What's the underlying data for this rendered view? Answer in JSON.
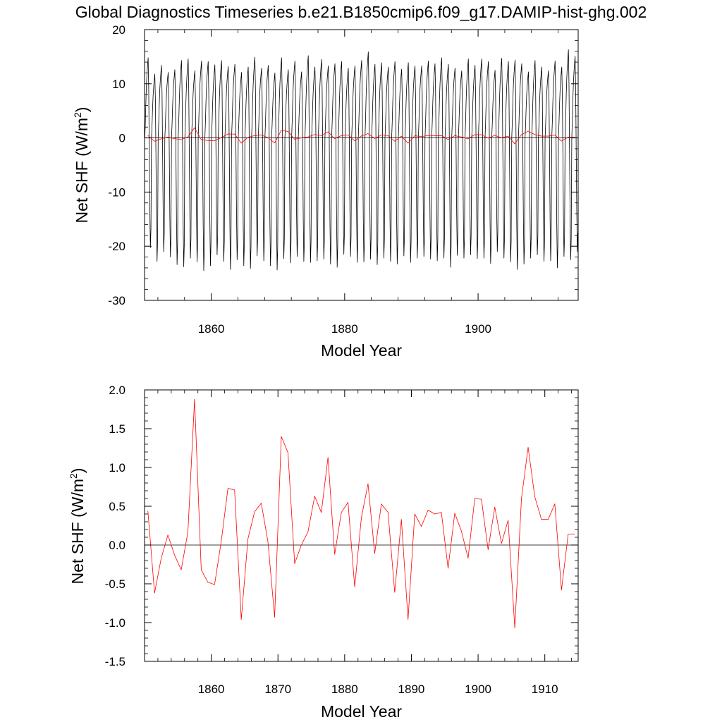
{
  "figure": {
    "title": "Global Diagnostics Timeseries b.e21.B1850cmip6.f09_g17.DAMIP-hist-ghg.002"
  },
  "chart_data": [
    {
      "type": "line",
      "title": "",
      "xlabel": "Model Year",
      "ylabel_prefix": "Net SHF (W/m",
      "ylabel_sup": "2",
      "ylabel_suffix": ")",
      "xlim": [
        1850,
        1915
      ],
      "ylim": [
        -30,
        20
      ],
      "xticks": [
        1860,
        1880,
        1900
      ],
      "yticks": [
        -30,
        -20,
        -10,
        0,
        10,
        20
      ],
      "zero_line": true,
      "series": [
        {
          "color": "#000000",
          "values_monthly": [
            0,
            3,
            7,
            10,
            12,
            13.5,
            14.8,
            9,
            -3,
            -15,
            -22.8,
            -19
          ],
          "note_shape": "seasonal cycle repeated each model year",
          "annual_max": [
            14.8,
            11.8,
            13.4,
            12.1,
            12.6,
            14.3,
            14.6,
            12.4,
            14.2,
            14.1,
            13.5,
            14.3,
            13.2,
            13.6,
            12.1,
            13.1,
            14.9,
            12.9,
            13.4,
            12.0,
            14.8,
            12.6,
            14.2,
            12.2,
            15.2,
            13.1,
            14.5,
            13.3,
            13.7,
            14.1,
            12.9,
            13.3,
            14.3,
            15.9,
            13.6,
            13.9,
            13.1,
            14.1,
            12.7,
            13.9,
            13.3,
            13.3,
            14.2,
            13.7,
            14.8,
            13.6,
            12.9,
            12.4,
            14.6,
            13.4,
            14.6,
            14.1,
            12.5,
            14.7,
            14.1,
            14.4,
            13.7,
            12.2,
            14.3,
            13.1,
            12.4,
            14.2,
            13.1,
            16.3,
            15.1
          ],
          "annual_min": [
            -20.3,
            -22.8,
            -21.0,
            -22.0,
            -23.4,
            -23.8,
            -22.2,
            -22.9,
            -24.5,
            -23.6,
            -21.6,
            -22.8,
            -24.3,
            -22.5,
            -23.6,
            -24.1,
            -21.8,
            -22.7,
            -23.6,
            -24.4,
            -22.3,
            -23.1,
            -21.9,
            -22.8,
            -23.0,
            -22.7,
            -22.4,
            -23.3,
            -23.9,
            -21.5,
            -21.9,
            -23.0,
            -22.9,
            -22.4,
            -23.4,
            -22.2,
            -22.8,
            -23.3,
            -21.8,
            -23.0,
            -22.2,
            -21.9,
            -22.4,
            -22.7,
            -22.2,
            -23.9,
            -21.7,
            -22.2,
            -21.6,
            -22.3,
            -22.2,
            -23.2,
            -21.0,
            -22.2,
            -22.9,
            -24.3,
            -23.3,
            -22.2,
            -21.6,
            -22.8,
            -22.7,
            -24.0,
            -21.9,
            -22.5,
            -21.0
          ]
        },
        {
          "color": "#ff0000",
          "values_ref": "annual",
          "x": [
            1850.5,
            1851.5,
            1852.5,
            1853.5,
            1854.5,
            1855.5,
            1856.5,
            1857.5,
            1858.5,
            1859.5,
            1860.5,
            1861.5,
            1862.5,
            1863.5,
            1864.5,
            1865.5,
            1866.5,
            1867.5,
            1868.5,
            1869.5,
            1870.5,
            1871.5,
            1872.5,
            1873.5,
            1874.5,
            1875.5,
            1876.5,
            1877.5,
            1878.5,
            1879.5,
            1880.5,
            1881.5,
            1882.5,
            1883.5,
            1884.5,
            1885.5,
            1886.5,
            1887.5,
            1888.5,
            1889.5,
            1890.5,
            1891.5,
            1892.5,
            1893.5,
            1894.5,
            1895.5,
            1896.5,
            1897.5,
            1898.5,
            1899.5,
            1900.5,
            1901.5,
            1902.5,
            1903.5,
            1904.5,
            1905.5,
            1906.5,
            1907.5,
            1908.5,
            1909.5,
            1910.5,
            1911.5,
            1912.5,
            1913.5,
            1914.5
          ],
          "values": [
            0.44,
            -0.62,
            -0.17,
            0.13,
            -0.13,
            -0.32,
            0.17,
            1.88,
            -0.32,
            -0.48,
            -0.51,
            0.05,
            0.73,
            0.71,
            -0.96,
            0.08,
            0.43,
            0.54,
            0.04,
            -0.93,
            1.4,
            1.19,
            -0.24,
            0.0,
            0.17,
            0.63,
            0.42,
            1.13,
            -0.12,
            0.42,
            0.55,
            -0.54,
            0.35,
            0.79,
            -0.11,
            0.53,
            0.42,
            -0.61,
            0.33,
            -0.96,
            0.4,
            0.24,
            0.45,
            0.4,
            0.42,
            -0.3,
            0.41,
            0.18,
            -0.17,
            0.6,
            0.59,
            -0.06,
            0.49,
            0.02,
            0.32,
            -1.07,
            0.6,
            1.26,
            0.62,
            0.33,
            0.33,
            0.53,
            -0.58,
            0.14,
            0.14
          ]
        }
      ]
    },
    {
      "type": "line",
      "title": "",
      "xlabel": "Model Year",
      "ylabel_prefix": "Net SHF (W/m",
      "ylabel_sup": "2",
      "ylabel_suffix": ")",
      "xlim": [
        1850,
        1915
      ],
      "ylim": [
        -1.5,
        2.0
      ],
      "xticks": [
        1860,
        1870,
        1880,
        1890,
        1900,
        1910
      ],
      "yticks": [
        -1.5,
        -1.0,
        -0.5,
        0.0,
        0.5,
        1.0,
        1.5,
        2.0
      ],
      "ytick_labels": [
        "-1.5",
        "-1.0",
        "-0.5",
        "0.0",
        "0.5",
        "1.0",
        "1.5",
        "2.0"
      ],
      "zero_line": true,
      "series": [
        {
          "color": "#ff0000",
          "x": [
            1850.5,
            1851.5,
            1852.5,
            1853.5,
            1854.5,
            1855.5,
            1856.5,
            1857.5,
            1858.5,
            1859.5,
            1860.5,
            1861.5,
            1862.5,
            1863.5,
            1864.5,
            1865.5,
            1866.5,
            1867.5,
            1868.5,
            1869.5,
            1870.5,
            1871.5,
            1872.5,
            1873.5,
            1874.5,
            1875.5,
            1876.5,
            1877.5,
            1878.5,
            1879.5,
            1880.5,
            1881.5,
            1882.5,
            1883.5,
            1884.5,
            1885.5,
            1886.5,
            1887.5,
            1888.5,
            1889.5,
            1890.5,
            1891.5,
            1892.5,
            1893.5,
            1894.5,
            1895.5,
            1896.5,
            1897.5,
            1898.5,
            1899.5,
            1900.5,
            1901.5,
            1902.5,
            1903.5,
            1904.5,
            1905.5,
            1906.5,
            1907.5,
            1908.5,
            1909.5,
            1910.5,
            1911.5,
            1912.5,
            1913.5,
            1914.5
          ],
          "values": [
            0.44,
            -0.62,
            -0.17,
            0.13,
            -0.13,
            -0.32,
            0.17,
            1.88,
            -0.32,
            -0.48,
            -0.51,
            0.05,
            0.73,
            0.71,
            -0.96,
            0.08,
            0.43,
            0.54,
            0.04,
            -0.93,
            1.4,
            1.19,
            -0.24,
            0.0,
            0.17,
            0.63,
            0.42,
            1.13,
            -0.12,
            0.42,
            0.55,
            -0.54,
            0.35,
            0.79,
            -0.11,
            0.53,
            0.42,
            -0.61,
            0.33,
            -0.96,
            0.4,
            0.24,
            0.45,
            0.4,
            0.42,
            -0.3,
            0.41,
            0.18,
            -0.17,
            0.6,
            0.59,
            -0.06,
            0.49,
            0.02,
            0.32,
            -1.07,
            0.6,
            1.26,
            0.62,
            0.33,
            0.33,
            0.53,
            -0.58,
            0.14,
            0.14
          ]
        }
      ]
    }
  ]
}
